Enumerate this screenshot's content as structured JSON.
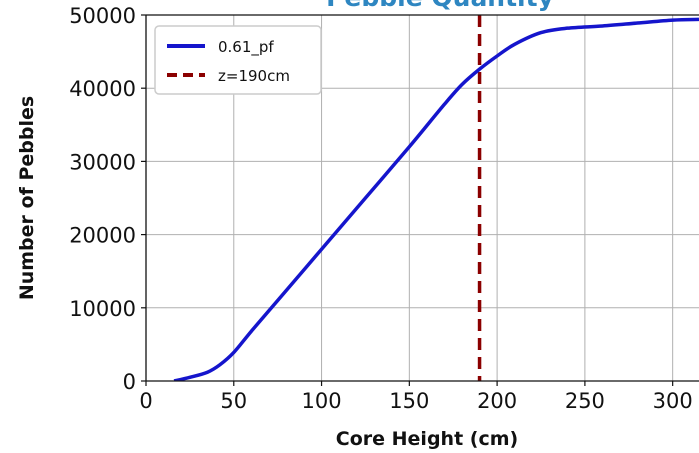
{
  "chart_data": {
    "type": "line",
    "title": "Pebble Quantity",
    "title_color": "#2e86c1",
    "xlabel": "Core Height (cm)",
    "ylabel": "Number of Pebbles",
    "xlim": [
      0,
      315
    ],
    "ylim": [
      0,
      50000
    ],
    "x_ticks": [
      0,
      50,
      100,
      150,
      200,
      250,
      300
    ],
    "y_ticks": [
      0,
      10000,
      20000,
      30000,
      40000,
      50000
    ],
    "grid": true,
    "legend_position": "top-left",
    "series": [
      {
        "name": "0.61_pf",
        "color": "#1515cc",
        "style": "solid",
        "x": [
          16,
          25,
          35,
          42,
          50,
          60,
          75,
          100,
          125,
          150,
          170,
          180,
          190,
          200,
          210,
          225,
          240,
          260,
          280,
          300,
          315
        ],
        "y": [
          0,
          500,
          1200,
          2200,
          3900,
          6800,
          11000,
          18000,
          25000,
          32000,
          37800,
          40500,
          42600,
          44400,
          46000,
          47600,
          48200,
          48500,
          48900,
          49300,
          49400
        ]
      }
    ],
    "vlines": [
      {
        "name": "z=190cm",
        "x": 190,
        "color": "#8b0000",
        "style": "dashed"
      }
    ]
  }
}
